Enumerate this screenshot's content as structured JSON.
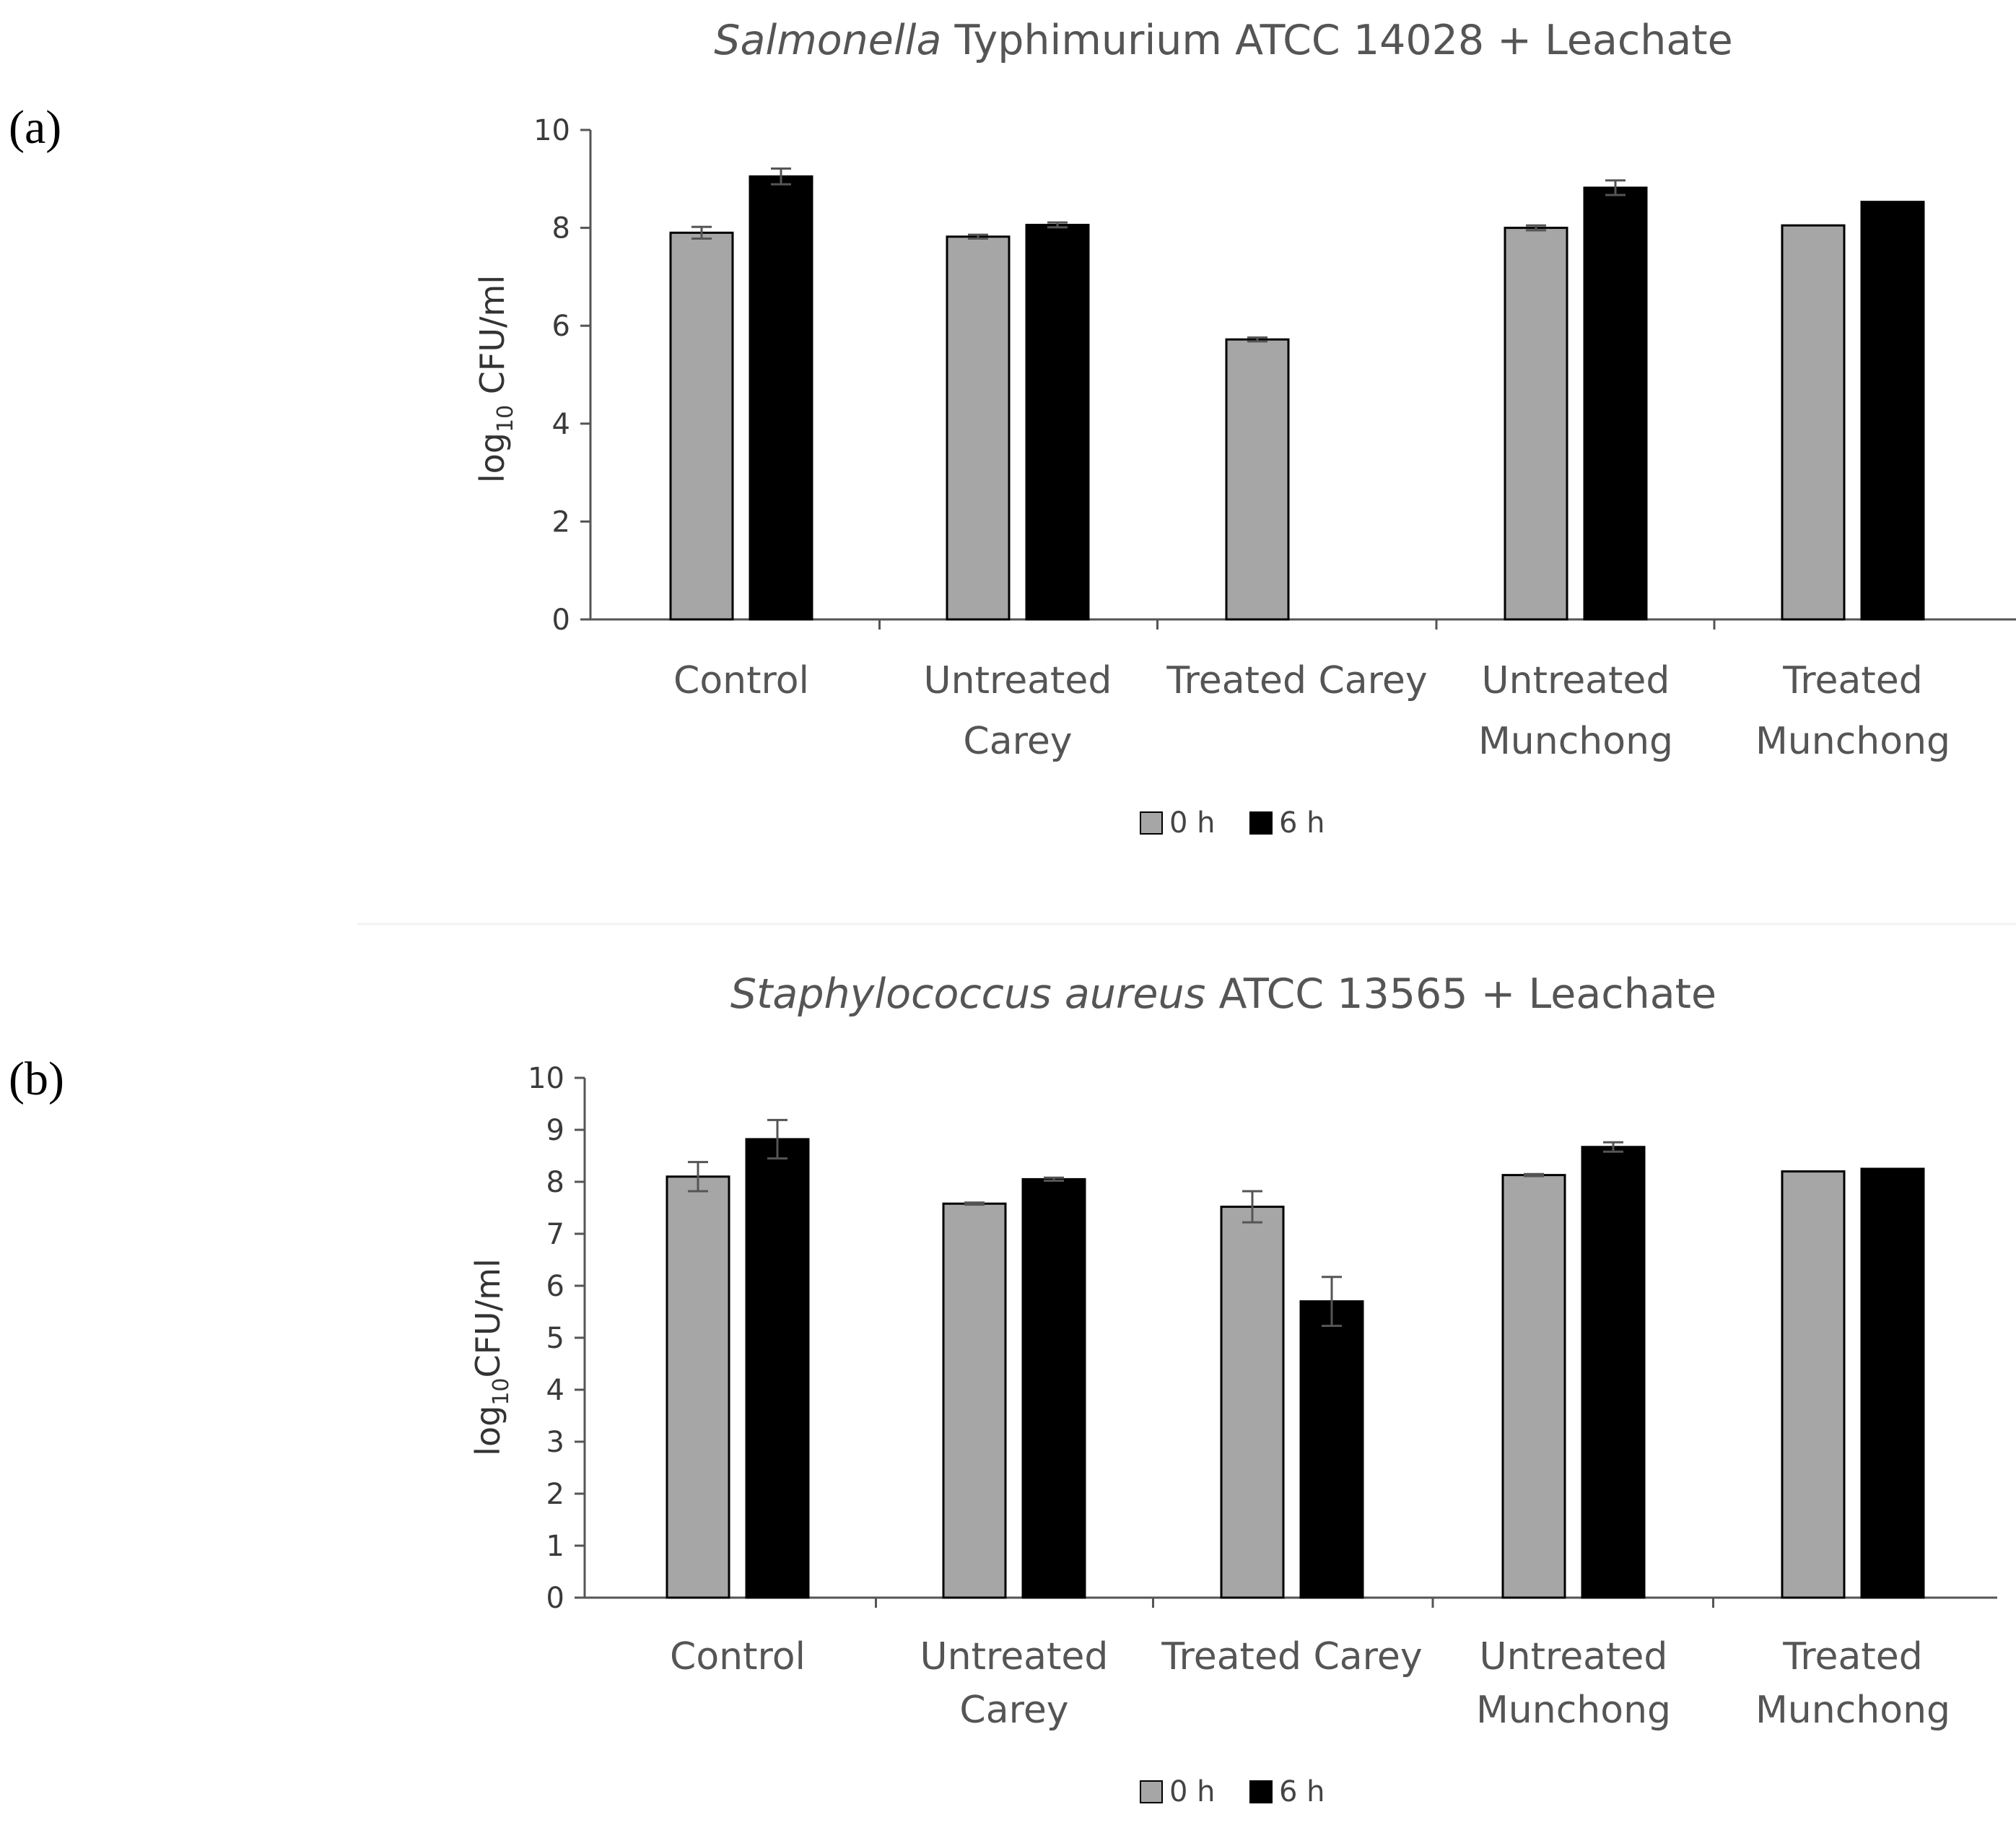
{
  "panel_labels": [
    "(a)",
    "(b)"
  ],
  "chart_data": [
    {
      "type": "bar",
      "title_italic": "Salmonella",
      "title_rest": " Typhimurium ATCC 14028 + Leachate",
      "ylabel_prefix": "log",
      "ylabel_sub": "10",
      "ylabel_suffix": " CFU/ml",
      "xlabel": "",
      "ylim": [
        0,
        10
      ],
      "yticks": [
        0,
        2,
        4,
        6,
        8,
        10
      ],
      "categories": [
        [
          "Control"
        ],
        [
          "Untreated",
          "Carey"
        ],
        [
          "Treated Carey"
        ],
        [
          "Untreated",
          "Munchong"
        ],
        [
          "Treated",
          "Munchong"
        ]
      ],
      "series": [
        {
          "name": "0 h",
          "color": "#a6a6a6",
          "values": [
            7.9,
            7.82,
            5.72,
            8.0,
            8.05
          ],
          "errors": [
            0.12,
            0.04,
            0.04,
            0.05,
            0
          ]
        },
        {
          "name": "6 h",
          "color": "#000000",
          "values": [
            9.05,
            8.06,
            null,
            8.82,
            8.53
          ],
          "errors": [
            0.16,
            0.05,
            0,
            0.15,
            0
          ]
        }
      ],
      "legend_position": "bottom-center",
      "grid": false
    },
    {
      "type": "bar",
      "title_italic": "Staphylococcus aureus",
      "title_rest": " ATCC 13565 + Leachate",
      "ylabel_prefix": "log",
      "ylabel_sub": "10",
      "ylabel_suffix": "CFU/ml",
      "xlabel": "",
      "ylim": [
        0,
        10
      ],
      "yticks": [
        0,
        1,
        2,
        3,
        4,
        5,
        6,
        7,
        8,
        9,
        10
      ],
      "categories": [
        [
          "Control"
        ],
        [
          "Untreated",
          "Carey"
        ],
        [
          "Treated Carey"
        ],
        [
          "Untreated",
          "Munchong"
        ],
        [
          "Treated",
          "Munchong"
        ]
      ],
      "series": [
        {
          "name": "0 h",
          "color": "#a6a6a6",
          "values": [
            8.1,
            7.58,
            7.52,
            8.13,
            8.2
          ],
          "errors": [
            0.28,
            0.02,
            0.3,
            0.02,
            0
          ]
        },
        {
          "name": "6 h",
          "color": "#000000",
          "values": [
            8.82,
            8.05,
            5.7,
            8.67,
            8.25
          ],
          "errors": [
            0.37,
            0.03,
            0.47,
            0.09,
            0
          ]
        }
      ],
      "legend_position": "bottom-center",
      "grid": false
    }
  ]
}
